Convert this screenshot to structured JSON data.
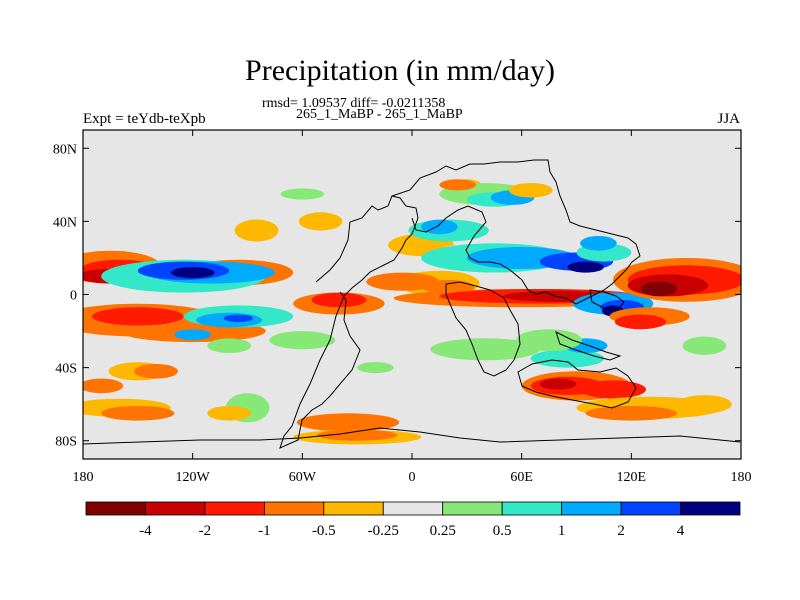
{
  "chart_data": {
    "type": "heatmap",
    "title": "Precipitation (in mm/day)",
    "stats_line": "rmsd= 1.09537 diff= -0.0211358",
    "case_line": "265_1_MaBP - 265_1_MaBP",
    "left_label": "Expt = teYdb-teXpb",
    "right_label": "JJA",
    "x_ticks": [
      "180",
      "120W",
      "60W",
      "0",
      "60E",
      "120E",
      "180"
    ],
    "x_tick_lons": [
      -180,
      -120,
      -60,
      0,
      60,
      120,
      180
    ],
    "y_ticks": [
      "80N",
      "40N",
      "0",
      "40S",
      "80S"
    ],
    "y_tick_lats": [
      80,
      40,
      0,
      -40,
      -80
    ],
    "xlim": [
      -180,
      180
    ],
    "ylim": [
      -90,
      90
    ],
    "colorbar": {
      "labels": [
        "-4",
        "-2",
        "-1",
        "-0.5",
        "-0.25",
        "0.25",
        "0.5",
        "1",
        "2",
        "4"
      ],
      "colors": [
        "#7f0000",
        "#c80000",
        "#ff1a00",
        "#ff7300",
        "#ffb800",
        "#e6e6e6",
        "#87e878",
        "#33e8c8",
        "#00aaff",
        "#0044ff",
        "#00007f"
      ]
    },
    "background_color": "#e6e6e6"
  }
}
